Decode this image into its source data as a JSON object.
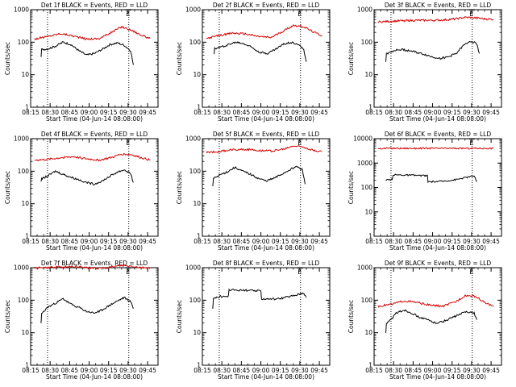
{
  "colors": {
    "events": "#000000",
    "lld": "#d40000",
    "axis": "#000000",
    "background": "#ffffff"
  },
  "chart_data": [
    {
      "type": "line",
      "title": "Det 1f BLACK = Events, RED = LLD",
      "xlabel": "Start Time (04-Jun-14 08:08:00)",
      "ylabel": "Counts/sec",
      "yscale": "log",
      "ylim": [
        1,
        1000
      ],
      "yticks": [
        "1",
        "10",
        "100",
        "1000"
      ],
      "xticks": [
        "08:15",
        "08:30",
        "08:45",
        "09:00",
        "09:15",
        "09:30",
        "09:45"
      ],
      "xlim_min": [
        7,
        105
      ],
      "markers": [
        {
          "x": 20,
          "label": ""
        },
        {
          "x": 82.5,
          "label": "E"
        }
      ],
      "grid": false,
      "series": [
        {
          "name": "LLD",
          "x": [
            10,
            20,
            30,
            40,
            50,
            60,
            70,
            77,
            85,
            92,
            99
          ],
          "y": [
            125,
            150,
            185,
            155,
            125,
            130,
            210,
            300,
            230,
            165,
            130
          ]
        },
        {
          "name": "Events",
          "x": [
            15,
            16,
            20,
            26,
            32,
            38,
            44,
            50,
            56,
            62,
            68,
            74,
            79,
            84,
            86
          ],
          "y": [
            35,
            60,
            62,
            75,
            100,
            85,
            55,
            40,
            45,
            60,
            85,
            95,
            80,
            55,
            20
          ]
        }
      ]
    },
    {
      "type": "line",
      "title": "Det 2f BLACK = Events, RED = LLD",
      "xlabel": "Start Time (04-Jun-14 08:08:00)",
      "ylabel": "Counts/sec",
      "yscale": "log",
      "ylim": [
        1,
        1000
      ],
      "yticks": [
        "1",
        "10",
        "100",
        "1000"
      ],
      "xticks": [
        "08:15",
        "08:30",
        "08:45",
        "09:00",
        "09:15",
        "09:30",
        "09:45"
      ],
      "xlim_min": [
        7,
        105
      ],
      "markers": [
        {
          "x": 20,
          "label": ""
        },
        {
          "x": 82.5,
          "label": "E"
        }
      ],
      "grid": false,
      "series": [
        {
          "name": "LLD",
          "x": [
            10,
            20,
            30,
            40,
            50,
            60,
            70,
            77,
            85,
            92,
            99
          ],
          "y": [
            130,
            160,
            190,
            180,
            150,
            140,
            230,
            330,
            300,
            210,
            160
          ]
        },
        {
          "name": "Events",
          "x": [
            16,
            17,
            21,
            27,
            33,
            39,
            45,
            51,
            57,
            63,
            69,
            75,
            80,
            85,
            87
          ],
          "y": [
            40,
            65,
            70,
            85,
            100,
            90,
            70,
            50,
            45,
            60,
            85,
            100,
            90,
            60,
            25
          ]
        }
      ]
    },
    {
      "type": "line",
      "title": "Det 3f BLACK = Events, RED = LLD",
      "xlabel": "Start Time (04-Jun-14 08:08:00)",
      "ylabel": "Counts/sec",
      "yscale": "log",
      "ylim": [
        1,
        1000
      ],
      "yticks": [
        "1",
        "10",
        "100",
        "1000"
      ],
      "xticks": [
        "08:15",
        "08:30",
        "08:45",
        "09:00",
        "09:15",
        "09:30",
        "09:45"
      ],
      "xlim_min": [
        7,
        105
      ],
      "markers": [
        {
          "x": 20,
          "label": ""
        },
        {
          "x": 82.5,
          "label": "E"
        }
      ],
      "grid": false,
      "series": [
        {
          "name": "LLD",
          "x": [
            10,
            20,
            30,
            40,
            50,
            60,
            70,
            77,
            85,
            92,
            99
          ],
          "y": [
            420,
            440,
            460,
            470,
            470,
            480,
            520,
            580,
            560,
            520,
            500
          ]
        },
        {
          "name": "Events",
          "x": [
            16,
            17,
            22,
            28,
            34,
            40,
            46,
            52,
            58,
            64,
            70,
            76,
            81,
            86,
            88
          ],
          "y": [
            25,
            45,
            55,
            60,
            55,
            48,
            42,
            35,
            32,
            35,
            45,
            80,
            110,
            90,
            45
          ]
        }
      ]
    },
    {
      "type": "line",
      "title": "Det 4f BLACK = Events, RED = LLD",
      "xlabel": "Start Time (04-Jun-14 08:08:00)",
      "ylabel": "Counts/sec",
      "yscale": "log",
      "ylim": [
        1,
        1000
      ],
      "yticks": [
        "1",
        "10",
        "100",
        "1000"
      ],
      "xticks": [
        "08:15",
        "08:30",
        "08:45",
        "09:00",
        "09:15",
        "09:30",
        "09:45"
      ],
      "xlim_min": [
        7,
        105
      ],
      "markers": [
        {
          "x": 20,
          "label": ""
        },
        {
          "x": 82.5,
          "label": "E"
        }
      ],
      "grid": false,
      "series": [
        {
          "name": "LLD",
          "x": [
            10,
            20,
            30,
            40,
            50,
            60,
            70,
            77,
            85,
            92,
            99
          ],
          "y": [
            220,
            230,
            260,
            280,
            240,
            220,
            270,
            340,
            320,
            260,
            220
          ]
        },
        {
          "name": "Events",
          "x": [
            15,
            16,
            20,
            26,
            32,
            38,
            44,
            50,
            56,
            62,
            68,
            74,
            79,
            84,
            86
          ],
          "y": [
            45,
            60,
            70,
            100,
            80,
            65,
            55,
            45,
            40,
            50,
            70,
            95,
            110,
            85,
            45
          ]
        }
      ]
    },
    {
      "type": "line",
      "title": "Det 5f BLACK = Events, RED = LLD",
      "xlabel": "Start Time (04-Jun-14 08:08:00)",
      "ylabel": "Counts/sec",
      "yscale": "log",
      "ylim": [
        1,
        1000
      ],
      "yticks": [
        "1",
        "10",
        "100",
        "1000"
      ],
      "xticks": [
        "08:15",
        "08:30",
        "08:45",
        "09:00",
        "09:15",
        "09:30",
        "09:45"
      ],
      "xlim_min": [
        7,
        105
      ],
      "markers": [
        {
          "x": 20,
          "label": ""
        },
        {
          "x": 82.5,
          "label": "E"
        }
      ],
      "grid": false,
      "series": [
        {
          "name": "LLD",
          "x": [
            10,
            20,
            30,
            40,
            50,
            60,
            70,
            77,
            85,
            92,
            99
          ],
          "y": [
            380,
            400,
            460,
            470,
            440,
            420,
            480,
            600,
            560,
            440,
            400
          ]
        },
        {
          "name": "Events",
          "x": [
            15,
            16,
            20,
            26,
            32,
            38,
            44,
            50,
            56,
            62,
            68,
            74,
            79,
            84,
            86
          ],
          "y": [
            35,
            60,
            75,
            95,
            130,
            100,
            80,
            60,
            50,
            60,
            80,
            110,
            140,
            110,
            40
          ]
        }
      ]
    },
    {
      "type": "line",
      "title": "Det 6f BLACK = Events, RED = LLD",
      "xlabel": "Start Time (04-Jun-14 08:08:00)",
      "ylabel": "Counts/sec",
      "yscale": "log",
      "ylim": [
        1,
        10000
      ],
      "yticks": [
        "1",
        "10",
        "100",
        "1000",
        "10000"
      ],
      "xticks": [
        "08:15",
        "08:30",
        "08:45",
        "09:00",
        "09:15",
        "09:30",
        "09:45"
      ],
      "xlim_min": [
        7,
        105
      ],
      "markers": [
        {
          "x": 20,
          "label": ""
        },
        {
          "x": 82.5,
          "label": "E"
        }
      ],
      "grid": false,
      "series": [
        {
          "name": "LLD",
          "x": [
            10,
            99
          ],
          "y": [
            4000,
            4000
          ]
        },
        {
          "name": "Events",
          "x": [
            16,
            17,
            21,
            22,
            35,
            48,
            49,
            60,
            70,
            78,
            84,
            86
          ],
          "y": [
            180,
            200,
            210,
            330,
            320,
            300,
            170,
            180,
            210,
            260,
            300,
            170
          ]
        }
      ]
    },
    {
      "type": "line",
      "title": "Det 7f BLACK = Events, RED = LLD",
      "xlabel": "Start Time (04-Jun-14 08:08:00)",
      "ylabel": "Counts/sec",
      "yscale": "log",
      "ylim": [
        1,
        1000
      ],
      "yticks": [
        "1",
        "10",
        "100",
        "1000"
      ],
      "xticks": [
        "08:15",
        "08:30",
        "08:45",
        "09:00",
        "09:15",
        "09:30",
        "09:45"
      ],
      "xlim_min": [
        7,
        105
      ],
      "markers": [
        {
          "x": 20,
          "label": ""
        },
        {
          "x": 82.5,
          "label": "E"
        }
      ],
      "grid": false,
      "series": [
        {
          "name": "LLD",
          "x": [
            10,
            20,
            30,
            40,
            50,
            60,
            70,
            77,
            85,
            92,
            99
          ],
          "y": [
            1000,
            1000,
            1050,
            1100,
            1000,
            950,
            1050,
            1150,
            1100,
            1000,
            1000
          ]
        },
        {
          "name": "Events",
          "x": [
            15,
            16,
            20,
            26,
            32,
            38,
            44,
            50,
            56,
            62,
            68,
            74,
            79,
            84,
            86
          ],
          "y": [
            20,
            40,
            60,
            80,
            110,
            75,
            60,
            45,
            40,
            50,
            70,
            95,
            120,
            90,
            55
          ]
        }
      ]
    },
    {
      "type": "line",
      "title": "Det 8f BLACK = Events, RED = LLD",
      "xlabel": "Start Time (04-Jun-14 08:08:00)",
      "ylabel": "Counts/sec",
      "yscale": "log",
      "ylim": [
        1,
        1000
      ],
      "yticks": [
        "1",
        "10",
        "100",
        "1000"
      ],
      "xticks": [
        "08:15",
        "08:30",
        "08:45",
        "09:00",
        "09:15",
        "09:30",
        "09:45"
      ],
      "xlim_min": [
        7,
        105
      ],
      "markers": [
        {
          "x": 20,
          "label": ""
        },
        {
          "x": 82.5,
          "label": "E"
        }
      ],
      "grid": false,
      "series": [
        {
          "name": "Events",
          "x": [
            15,
            16,
            20,
            21,
            27,
            28,
            40,
            52,
            53,
            65,
            78,
            85,
            87
          ],
          "y": [
            55,
            120,
            125,
            130,
            130,
            210,
            200,
            190,
            110,
            110,
            140,
            170,
            120
          ]
        }
      ]
    },
    {
      "type": "line",
      "title": "Det 9f BLACK = Events, RED = LLD",
      "xlabel": "Start Time (04-Jun-14 08:08:00)",
      "ylabel": "Counts/sec",
      "yscale": "log",
      "ylim": [
        1,
        1000
      ],
      "yticks": [
        "1",
        "10",
        "100",
        "1000"
      ],
      "xticks": [
        "08:15",
        "08:30",
        "08:45",
        "09:00",
        "09:15",
        "09:30",
        "09:45"
      ],
      "xlim_min": [
        7,
        105
      ],
      "markers": [
        {
          "x": 20,
          "label": ""
        },
        {
          "x": 82.5,
          "label": "E"
        }
      ],
      "grid": false,
      "series": [
        {
          "name": "LLD",
          "x": [
            10,
            20,
            30,
            40,
            50,
            60,
            70,
            77,
            85,
            92,
            99
          ],
          "y": [
            65,
            75,
            95,
            85,
            70,
            65,
            90,
            140,
            130,
            85,
            65
          ]
        },
        {
          "name": "Events",
          "x": [
            16,
            17,
            20,
            24,
            30,
            36,
            42,
            48,
            54,
            60,
            66,
            72,
            78,
            84,
            86
          ],
          "y": [
            10,
            20,
            25,
            40,
            50,
            40,
            30,
            25,
            20,
            22,
            28,
            35,
            45,
            40,
            25
          ]
        }
      ]
    }
  ]
}
